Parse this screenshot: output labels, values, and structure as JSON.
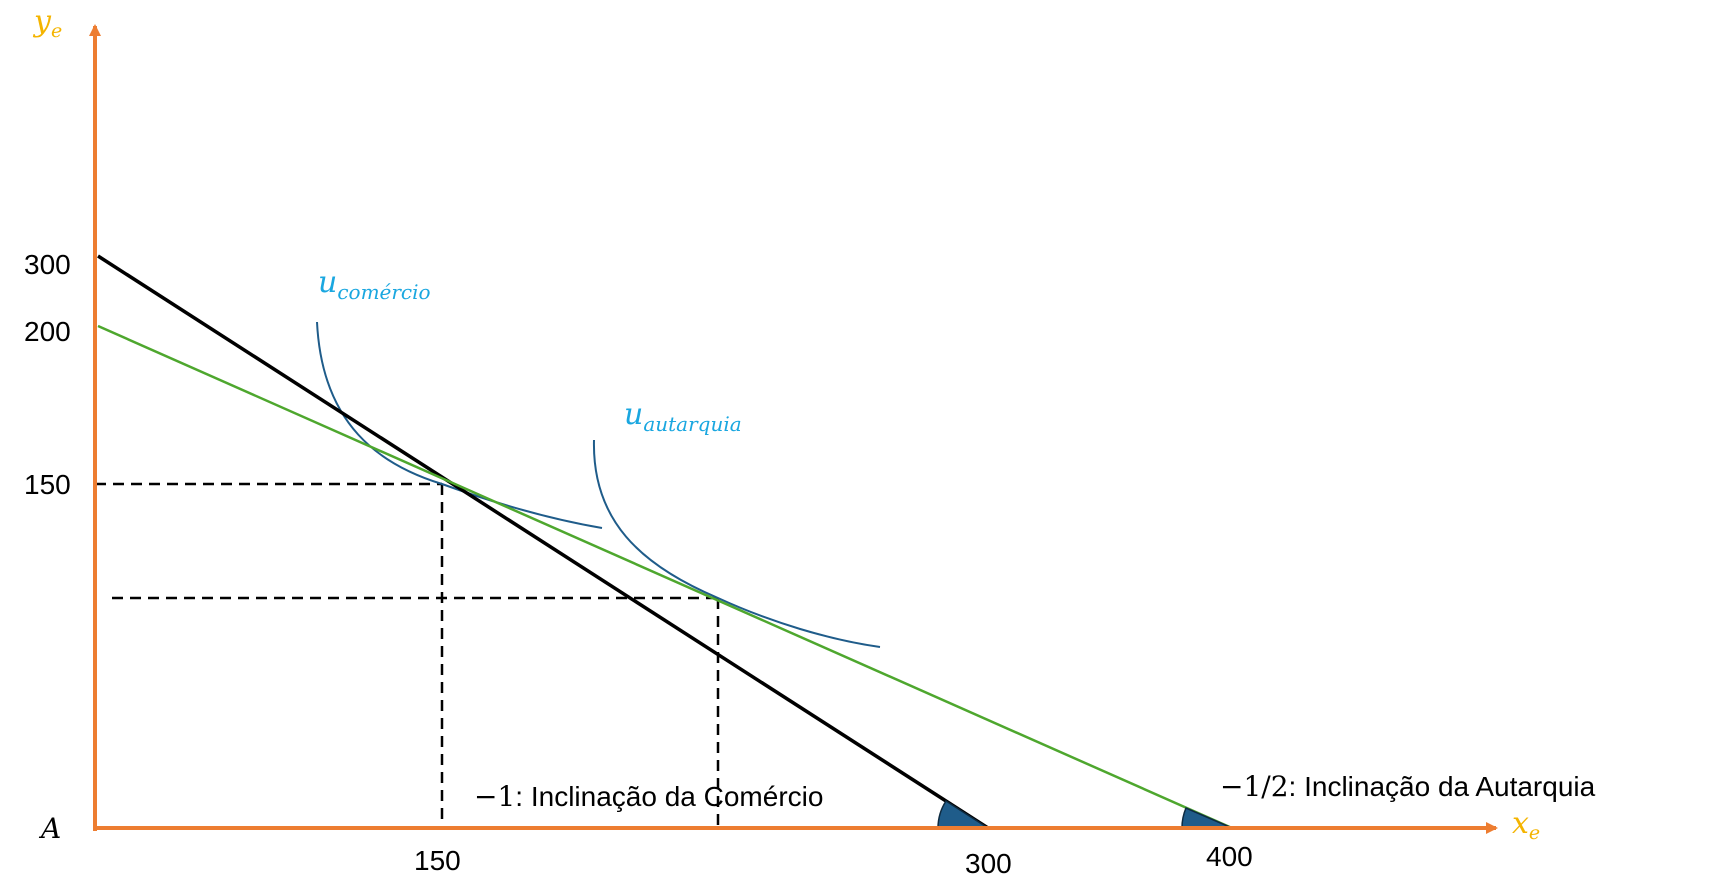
{
  "colors": {
    "axis": "#ED7D31",
    "axis_label": "#F4B400",
    "trade_line": "#000000",
    "autarky_line": "#4EA72E",
    "indifference_curve": "#1F5C8A",
    "curve_label": "#1AA7E0",
    "angle_marker": "#1F5C8A",
    "guide": "#000000"
  },
  "axes": {
    "y": {
      "symbol": "y",
      "subscript": "e"
    },
    "x": {
      "symbol": "x",
      "subscript": "e"
    },
    "origin": "A"
  },
  "ticks": {
    "y": [
      "300",
      "200",
      "150"
    ],
    "x": [
      "150",
      "300",
      "400"
    ]
  },
  "lines": {
    "trade": {
      "intercepts": {
        "y": 300,
        "x": 300
      },
      "slope_value": "−1",
      "slope_text": ": Inclinação da Comércio"
    },
    "autarky": {
      "intercepts": {
        "y": 200,
        "x": 400
      },
      "slope_value": "−1/2",
      "slope_text": ": Inclinação da Autarquia"
    }
  },
  "curves": {
    "trade": {
      "symbol": "u",
      "subscript": "comércio",
      "tangent_point": {
        "x": 150,
        "y": 150
      }
    },
    "autarky": {
      "symbol": "u",
      "subscript": "autarquia",
      "tangent_point": {
        "x": 243,
        "y": 78.5
      }
    }
  },
  "guides": [
    {
      "from": "y-axis",
      "to_point": {
        "x": 150,
        "y": 150
      }
    },
    {
      "from": "y-axis",
      "to_point": {
        "x": 243,
        "y": 78.5
      }
    }
  ]
}
